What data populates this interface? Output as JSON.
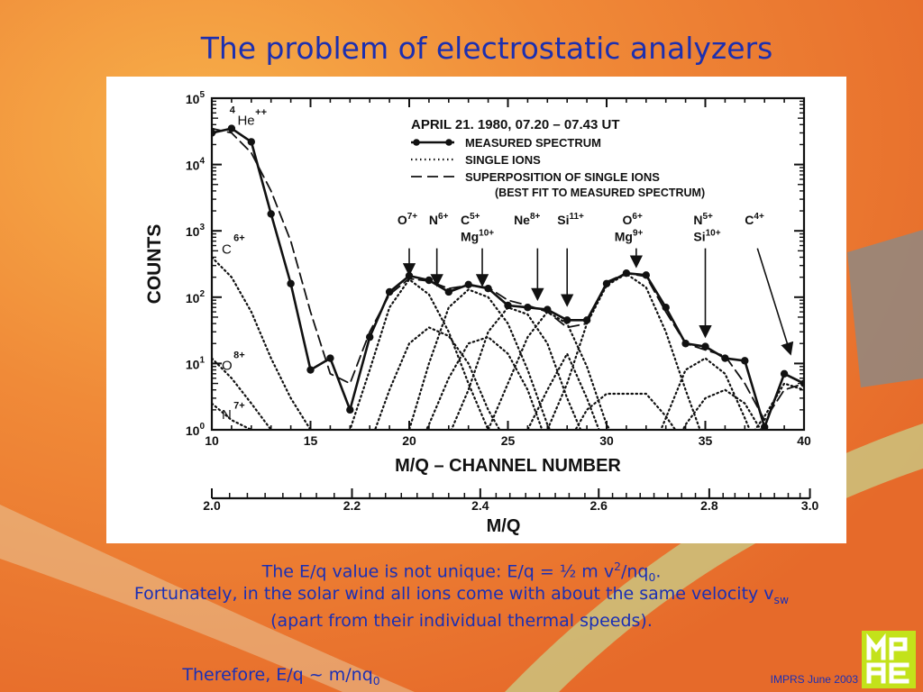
{
  "slide": {
    "title": "The problem of electrostatic analyzers",
    "caption_line1_main": "The E/q value is not unique: E/q = ½ m v",
    "caption_line1_sup": "2",
    "caption_line1_mid": "/nq",
    "caption_line1_sub": "0",
    "caption_line1_end": ".",
    "caption_line2_main": "Fortunately, in the solar wind all ions come with about the same velocity v",
    "caption_line2_sub": "sw",
    "caption_line3": "(apart from their individual thermal speeds).",
    "caption_line4_main": "Therefore,  E/q ~ m/nq",
    "caption_line4_sub": "0",
    "credit": "IMPRS June 2003",
    "logo_text": "MPAE",
    "colors": {
      "title": "#1c2fb0",
      "caption": "#1a2fb5",
      "background": "#f08a38",
      "logo": "#c3e21a"
    }
  },
  "chart_data": {
    "type": "line",
    "ylabel": "COUNTS",
    "xlabel": "M/Q – CHANNEL NUMBER",
    "x2label": "M/Q",
    "xlim": [
      10,
      40
    ],
    "ylim_log10": [
      0,
      5
    ],
    "yscale": "log",
    "x_ticks": [
      10,
      15,
      20,
      25,
      30,
      35,
      40
    ],
    "x_ticks_minor": [
      11,
      12,
      13,
      14,
      16,
      17,
      18,
      19,
      21,
      22,
      23,
      24,
      26,
      27,
      28,
      29,
      31,
      32,
      33,
      34,
      36,
      37,
      38,
      39
    ],
    "y_tick_exponents": [
      0,
      1,
      2,
      3,
      4,
      5
    ],
    "y_tick_base": "10",
    "x2_ticks": [
      {
        "label": "2.0",
        "channel": 10
      },
      {
        "label": "2.2",
        "channel": 17.1
      },
      {
        "label": "2.4",
        "channel": 23.6
      },
      {
        "label": "2.6",
        "channel": 29.6
      },
      {
        "label": "2.8",
        "channel": 35.2
      },
      {
        "label": "3.0",
        "channel": 40.3
      }
    ],
    "x2_ticks_minor": [
      10.9,
      11.8,
      12.7,
      13.6,
      14.5,
      15.3,
      16.2,
      18.0,
      18.8,
      19.6,
      20.4,
      21.2,
      22.0,
      22.8,
      24.4,
      25.1,
      25.9,
      26.6,
      27.4,
      28.1,
      28.9,
      30.3,
      31.0,
      31.7,
      32.4,
      33.1,
      33.8,
      34.5,
      35.9,
      36.5,
      37.2,
      37.8,
      38.5,
      39.2,
      39.8
    ],
    "legend": {
      "header": "APRIL 21. 1980,  07.20 – 07.43 UT",
      "items": [
        {
          "style": "solid-dots",
          "label": "MEASURED SPECTRUM"
        },
        {
          "style": "dotted",
          "label": "SINGLE IONS"
        },
        {
          "style": "dashed",
          "label": "SUPERPOSITION OF SINGLE IONS"
        }
      ],
      "note": "(BEST FIT TO MEASURED SPECTRUM)",
      "position": "top-right"
    },
    "series": [
      {
        "name": "MEASURED SPECTRUM",
        "style": "solid-dots",
        "x": [
          10,
          11,
          12,
          13,
          14,
          15,
          16,
          17,
          18,
          19,
          20,
          21,
          22,
          23,
          24,
          25,
          26,
          27,
          28,
          29,
          30,
          31,
          32,
          33,
          34,
          35,
          36,
          37,
          38,
          39,
          40
        ],
        "y": [
          30000,
          35000,
          22000,
          1800,
          160,
          8,
          12,
          2,
          25,
          120,
          210,
          180,
          120,
          155,
          135,
          75,
          70,
          65,
          45,
          45,
          160,
          230,
          215,
          70,
          20,
          18,
          12,
          11,
          1.1,
          7,
          5
        ]
      },
      {
        "name": "SUPERPOSITION OF SINGLE IONS",
        "style": "dashed",
        "x": [
          10,
          11,
          12,
          13,
          14,
          15,
          16,
          17,
          18,
          19,
          20,
          21,
          22,
          23,
          24,
          25,
          26,
          27,
          28,
          29,
          30,
          31,
          32,
          33,
          34,
          35,
          36,
          37,
          38,
          39,
          40
        ],
        "y": [
          35000,
          30000,
          15000,
          4000,
          700,
          60,
          7,
          5,
          30,
          110,
          190,
          175,
          135,
          150,
          140,
          90,
          75,
          60,
          35,
          40,
          170,
          230,
          205,
          60,
          20,
          16,
          13,
          5,
          1.4,
          4,
          5
        ]
      },
      {
        "name": "SINGLE IONS",
        "style": "dotted",
        "curves": [
          {
            "x": [
              10,
              11,
              12,
              13,
              14,
              15,
              16,
              17
            ],
            "y": [
              400,
              200,
              60,
              12,
              3,
              1,
              0.5,
              0.3
            ]
          },
          {
            "x": [
              10,
              11,
              12,
              13
            ],
            "y": [
              12,
              6,
              2.5,
              1
            ]
          },
          {
            "x": [
              10,
              11,
              12
            ],
            "y": [
              2.5,
              1.4,
              1
            ]
          },
          {
            "x": [
              16,
              17,
              18,
              19,
              20,
              21,
              22,
              23,
              24,
              25
            ],
            "y": [
              0.4,
              1,
              8,
              70,
              185,
              110,
              30,
              5,
              1,
              0.3
            ]
          },
          {
            "x": [
              17,
              18,
              19,
              20,
              21,
              22,
              23,
              24,
              25,
              26
            ],
            "y": [
              0.3,
              0.6,
              4,
              20,
              35,
              26,
              10,
              2,
              0.6,
              0.3
            ]
          },
          {
            "x": [
              19,
              20,
              21,
              22,
              23,
              24,
              25,
              26,
              27,
              28
            ],
            "y": [
              0.3,
              1,
              10,
              70,
              130,
              100,
              40,
              8,
              1.2,
              0.3
            ]
          },
          {
            "x": [
              20,
              21,
              22,
              23,
              24,
              25,
              26,
              27
            ],
            "y": [
              0.3,
              1.2,
              6,
              20,
              25,
              14,
              4,
              0.6
            ]
          },
          {
            "x": [
              21,
              22,
              23,
              24,
              25,
              26,
              27,
              28,
              29,
              30
            ],
            "y": [
              0.3,
              0.8,
              4,
              30,
              70,
              55,
              20,
              3,
              0.6,
              0.3
            ]
          },
          {
            "x": [
              23,
              24,
              25,
              26,
              27,
              28,
              29,
              30,
              31,
              32
            ],
            "y": [
              0.3,
              1,
              5,
              25,
              60,
              40,
              9,
              1.2,
              0.4,
              0.3
            ]
          },
          {
            "x": [
              25,
              26,
              27,
              28,
              29,
              30
            ],
            "y": [
              0.3,
              1,
              4,
              14,
              3,
              0.5
            ]
          },
          {
            "x": [
              26,
              27,
              28,
              29,
              30,
              31,
              32,
              33,
              34,
              35,
              36
            ],
            "y": [
              0.3,
              1,
              5,
              40,
              150,
              225,
              140,
              30,
              4,
              0.6,
              0.3
            ]
          },
          {
            "x": [
              28,
              29,
              30,
              31,
              32,
              33,
              34
            ],
            "y": [
              0.6,
              2,
              3.5,
              3.5,
              3.5,
              1.6,
              0.6
            ]
          },
          {
            "x": [
              32,
              33,
              34,
              35,
              36,
              37,
              38
            ],
            "y": [
              0.3,
              1.5,
              8,
              12,
              7,
              1.5,
              0.3
            ]
          },
          {
            "x": [
              33,
              34,
              35,
              36,
              37,
              38,
              39
            ],
            "y": [
              0.3,
              1.2,
              3,
              4,
              2.5,
              0.8,
              0.3
            ]
          },
          {
            "x": [
              36,
              37,
              38,
              39,
              40
            ],
            "y": [
              0.3,
              0.6,
              1.6,
              5,
              4
            ]
          }
        ]
      }
    ],
    "annotations": [
      {
        "label": "4",
        "kind": "ion-sup",
        "x": 10.9,
        "y": 60000
      },
      {
        "label": "He",
        "kind": "ion",
        "x": 11.3,
        "y": 40000
      },
      {
        "label": "++",
        "kind": "ion-sup",
        "x": 12.2,
        "y": 55000
      },
      {
        "label": "C",
        "kind": "ion",
        "x": 10.5,
        "y": 450
      },
      {
        "label": "6+",
        "kind": "ion-sup",
        "x": 11.1,
        "y": 700
      },
      {
        "label": "O",
        "kind": "ion",
        "x": 10.5,
        "y": 8
      },
      {
        "label": "8+",
        "kind": "ion-sup",
        "x": 11.1,
        "y": 12
      },
      {
        "label": "N",
        "kind": "ion",
        "x": 10.5,
        "y": 1.45
      },
      {
        "label": "7+",
        "kind": "ion-sup",
        "x": 11.1,
        "y": 2.1
      }
    ],
    "arrow_labels": [
      {
        "label": "O",
        "sup": "7+",
        "x_text": 19.4,
        "tip_x": 20,
        "tip_y": 190,
        "y_text": 1250
      },
      {
        "label": "N",
        "sup": "6+",
        "x_text": 21.0,
        "tip_x": 21.4,
        "tip_y": 130,
        "y_text": 1250
      },
      {
        "label": "C",
        "sup": "5+",
        "x_text": 22.6,
        "tip_x": 23.7,
        "tip_y": 130,
        "y_text": 1250
      },
      {
        "label": "Mg",
        "sup": "10+",
        "x_text": 22.6,
        "tip_x": 23.7,
        "tip_y": 130,
        "y_text": 700
      },
      {
        "label": "Ne",
        "sup": "8+",
        "x_text": 25.3,
        "tip_x": 26.5,
        "tip_y": 80,
        "y_text": 1250
      },
      {
        "label": "Si",
        "sup": "11+",
        "x_text": 27.5,
        "tip_x": 28.0,
        "tip_y": 65,
        "y_text": 1250
      },
      {
        "label": "O",
        "sup": "6+",
        "x_text": 30.8,
        "tip_x": 31.5,
        "tip_y": 250,
        "y_text": 1250
      },
      {
        "label": "Mg",
        "sup": "9+",
        "x_text": 30.4,
        "tip_x": 31.5,
        "tip_y": 250,
        "y_text": 700
      },
      {
        "label": "N",
        "sup": "5+",
        "x_text": 34.4,
        "tip_x": 35.0,
        "tip_y": 22,
        "y_text": 1250
      },
      {
        "label": "Si",
        "sup": "10+",
        "x_text": 34.4,
        "tip_x": 35.0,
        "tip_y": 22,
        "y_text": 700
      },
      {
        "label": "C",
        "sup": "4+",
        "x_text": 37.0,
        "tip_x": 39.3,
        "tip_y": 12,
        "y_text": 1250
      }
    ],
    "grid": false
  }
}
